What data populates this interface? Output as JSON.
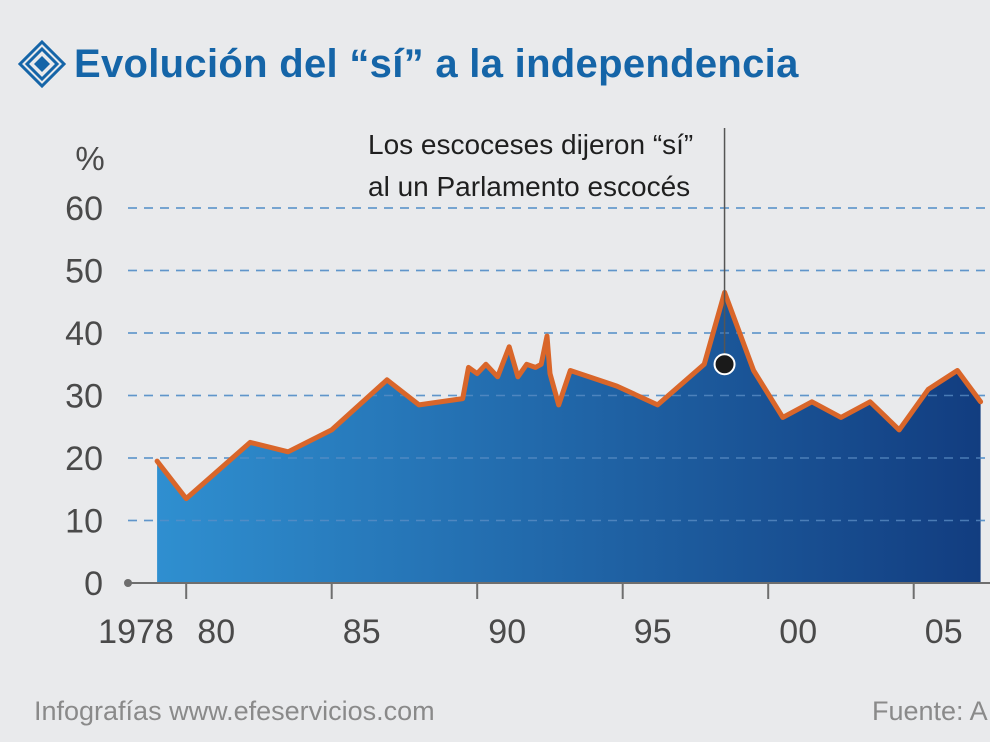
{
  "title": "Evolución del “sí” a la independencia",
  "footer": {
    "credit": "Infografías www.efeservicios.com",
    "source": "Fuente: A"
  },
  "colors": {
    "title": "#1565a8",
    "line": "#d9662a",
    "area_light": "#2f8fd0",
    "area_dark": "#123d80",
    "grid": "#6aaad8"
  },
  "chart_data": {
    "type": "area",
    "title": "Evolución del “sí” a la independencia",
    "ylabel": "%",
    "xlabel": "",
    "ylim": [
      0,
      60
    ],
    "yticks": [
      0,
      10,
      20,
      30,
      40,
      50,
      60
    ],
    "ytick_labels": [
      "0",
      "10",
      "20",
      "30",
      "40",
      "50",
      "60"
    ],
    "xticks": [
      1978,
      1980,
      1985,
      1990,
      1995,
      2000,
      2005
    ],
    "xtick_labels": [
      "1978",
      "80",
      "85",
      "90",
      "95",
      "00",
      "05"
    ],
    "grid": true,
    "series": [
      {
        "x": [
          1979.0,
          1980.0,
          1982.2,
          1983.5,
          1985.0,
          1986.9,
          1988.0,
          1989.5,
          1989.7,
          1990.0,
          1990.3,
          1990.7,
          1991.1,
          1991.4,
          1991.7,
          1992.0,
          1992.2,
          1992.4,
          1992.5,
          1992.8,
          1993.2,
          1994.8,
          1996.2,
          1997.8,
          1998.5,
          1999.5,
          2000.5,
          2001.5,
          2002.5,
          2003.5,
          2004.5,
          2005.5,
          2006.5,
          2007.3
        ],
        "y": [
          19.5,
          13.5,
          22.5,
          21.0,
          24.5,
          32.5,
          28.5,
          29.5,
          34.5,
          33.5,
          35.0,
          33.0,
          37.8,
          33.0,
          35.0,
          34.5,
          35.0,
          39.5,
          33.5,
          28.5,
          34.0,
          31.5,
          28.5,
          35.0,
          46.5,
          34.0,
          26.5,
          29.0,
          26.5,
          29.0,
          24.5,
          31.0,
          34.0,
          29.0
        ]
      }
    ],
    "annotation": {
      "x": 1998.5,
      "y": 35.0,
      "lines": [
        "Los escoceses dijeron “sí”",
        "al un Parlamento escocés"
      ]
    }
  }
}
